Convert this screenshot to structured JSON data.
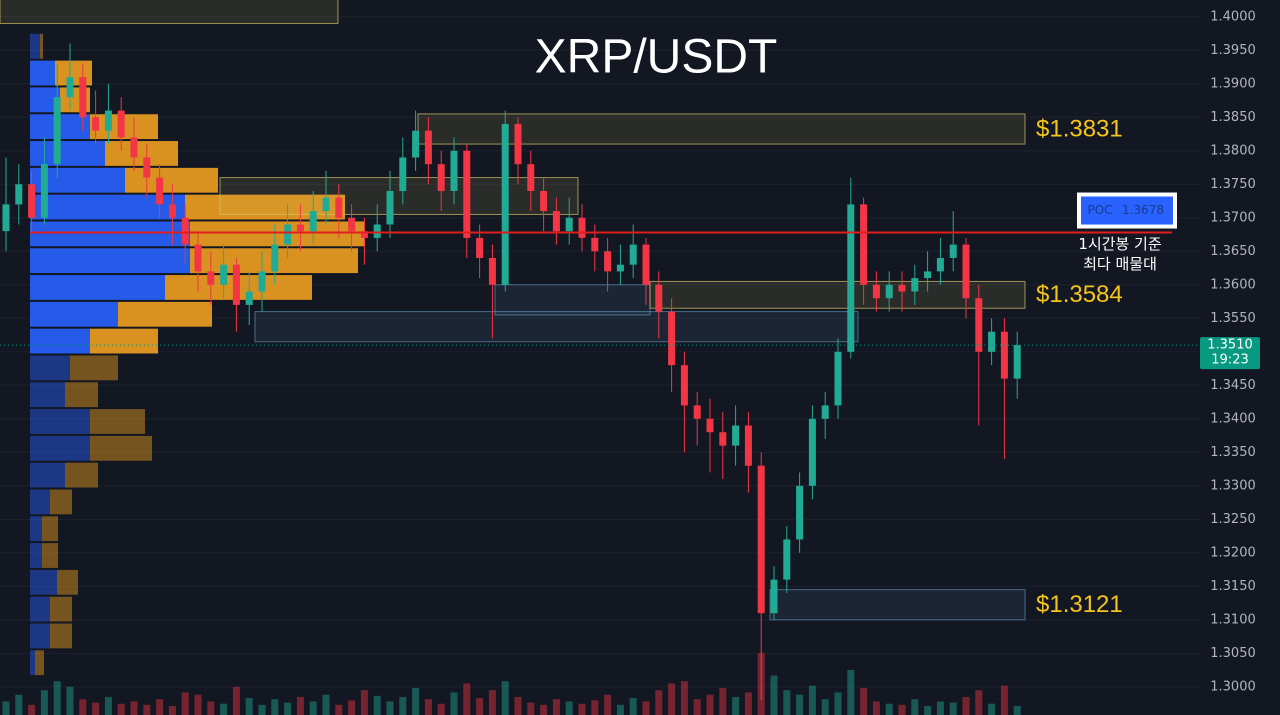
{
  "chart_data": {
    "type": "candlestick",
    "title": "XRP/USDT",
    "ylim": [
      1.2958,
      1.4025
    ],
    "yticks": [
      {
        "value": 1.3,
        "label": "1.3000"
      },
      {
        "value": 1.305,
        "label": "1.3050"
      },
      {
        "value": 1.31,
        "label": "1.3100"
      },
      {
        "value": 1.315,
        "label": "1.3150"
      },
      {
        "value": 1.32,
        "label": "1.3200"
      },
      {
        "value": 1.325,
        "label": "1.3250"
      },
      {
        "value": 1.33,
        "label": "1.3300"
      },
      {
        "value": 1.335,
        "label": "1.3350"
      },
      {
        "value": 1.34,
        "label": "1.3400"
      },
      {
        "value": 1.345,
        "label": "1.3450"
      },
      {
        "value": 1.35,
        "label": "1.3500"
      },
      {
        "value": 1.355,
        "label": "1.3550"
      },
      {
        "value": 1.36,
        "label": "1.3600"
      },
      {
        "value": 1.365,
        "label": "1.3650"
      },
      {
        "value": 1.37,
        "label": "1.3700"
      },
      {
        "value": 1.375,
        "label": "1.3750"
      },
      {
        "value": 1.38,
        "label": "1.3800"
      },
      {
        "value": 1.385,
        "label": "1.3850"
      },
      {
        "value": 1.39,
        "label": "1.3900"
      },
      {
        "value": 1.395,
        "label": "1.3950"
      },
      {
        "value": 1.4,
        "label": "1.4000"
      }
    ],
    "grid": true,
    "up_color": "#22ab94",
    "down_color": "#f23645",
    "open": [
      1.368,
      1.372,
      1.375,
      1.37,
      1.378,
      1.388,
      1.391,
      1.385,
      1.383,
      1.386,
      1.382,
      1.379,
      1.376,
      1.372,
      1.37,
      1.366,
      1.362,
      1.36,
      1.363,
      1.357,
      1.359,
      1.362,
      1.366,
      1.369,
      1.368,
      1.371,
      1.373,
      1.37,
      1.368,
      1.367,
      1.369,
      1.374,
      1.379,
      1.383,
      1.378,
      1.374,
      1.38,
      1.367,
      1.364,
      1.36,
      1.384,
      1.378,
      1.374,
      1.371,
      1.368,
      1.37,
      1.367,
      1.365,
      1.362,
      1.363,
      1.366,
      1.36,
      1.356,
      1.348,
      1.342,
      1.34,
      1.338,
      1.336,
      1.339,
      1.333,
      1.311,
      1.316,
      1.322,
      1.33,
      1.34,
      1.342,
      1.35,
      1.372,
      1.36,
      1.358,
      1.36,
      1.359,
      1.361,
      1.362,
      1.364,
      1.366,
      1.358,
      1.35,
      1.353,
      1.346
    ],
    "high": [
      1.379,
      1.378,
      1.377,
      1.382,
      1.393,
      1.396,
      1.393,
      1.389,
      1.39,
      1.388,
      1.385,
      1.381,
      1.378,
      1.375,
      1.372,
      1.368,
      1.365,
      1.366,
      1.364,
      1.362,
      1.365,
      1.369,
      1.372,
      1.372,
      1.374,
      1.377,
      1.375,
      1.372,
      1.37,
      1.372,
      1.377,
      1.382,
      1.386,
      1.385,
      1.38,
      1.382,
      1.381,
      1.369,
      1.366,
      1.386,
      1.385,
      1.38,
      1.376,
      1.373,
      1.373,
      1.372,
      1.369,
      1.367,
      1.366,
      1.369,
      1.367,
      1.362,
      1.358,
      1.35,
      1.344,
      1.343,
      1.341,
      1.342,
      1.341,
      1.335,
      1.318,
      1.324,
      1.332,
      1.342,
      1.344,
      1.352,
      1.376,
      1.373,
      1.362,
      1.362,
      1.362,
      1.363,
      1.365,
      1.367,
      1.371,
      1.367,
      1.36,
      1.355,
      1.355,
      1.353
    ],
    "low": [
      1.365,
      1.369,
      1.368,
      1.369,
      1.376,
      1.386,
      1.383,
      1.381,
      1.381,
      1.38,
      1.377,
      1.373,
      1.37,
      1.366,
      1.363,
      1.359,
      1.357,
      1.358,
      1.353,
      1.354,
      1.356,
      1.36,
      1.364,
      1.365,
      1.366,
      1.369,
      1.367,
      1.365,
      1.363,
      1.365,
      1.367,
      1.372,
      1.377,
      1.375,
      1.371,
      1.372,
      1.364,
      1.361,
      1.352,
      1.359,
      1.375,
      1.371,
      1.368,
      1.366,
      1.366,
      1.365,
      1.362,
      1.359,
      1.36,
      1.361,
      1.357,
      1.352,
      1.344,
      1.335,
      1.336,
      1.332,
      1.331,
      1.333,
      1.329,
      1.298,
      1.31,
      1.314,
      1.32,
      1.328,
      1.337,
      1.34,
      1.349,
      1.357,
      1.356,
      1.356,
      1.356,
      1.357,
      1.359,
      1.36,
      1.362,
      1.355,
      1.339,
      1.348,
      1.334,
      1.343
    ],
    "close": [
      1.372,
      1.375,
      1.37,
      1.378,
      1.388,
      1.391,
      1.385,
      1.383,
      1.386,
      1.382,
      1.379,
      1.376,
      1.372,
      1.37,
      1.366,
      1.362,
      1.36,
      1.363,
      1.357,
      1.359,
      1.362,
      1.366,
      1.369,
      1.368,
      1.371,
      1.373,
      1.37,
      1.368,
      1.367,
      1.369,
      1.374,
      1.379,
      1.383,
      1.378,
      1.374,
      1.38,
      1.367,
      1.364,
      1.36,
      1.384,
      1.378,
      1.374,
      1.371,
      1.368,
      1.37,
      1.367,
      1.365,
      1.362,
      1.363,
      1.366,
      1.36,
      1.356,
      1.348,
      1.342,
      1.34,
      1.338,
      1.336,
      1.339,
      1.333,
      1.311,
      1.316,
      1.322,
      1.33,
      1.34,
      1.342,
      1.35,
      1.372,
      1.36,
      1.358,
      1.36,
      1.359,
      1.361,
      1.362,
      1.364,
      1.366,
      1.358,
      1.35,
      1.353,
      1.346,
      1.351
    ],
    "volume": [
      12,
      18,
      9,
      22,
      30,
      25,
      14,
      11,
      16,
      10,
      12,
      9,
      14,
      8,
      20,
      18,
      12,
      10,
      25,
      15,
      9,
      14,
      11,
      16,
      12,
      18,
      9,
      13,
      22,
      17,
      12,
      16,
      24,
      14,
      10,
      20,
      28,
      15,
      22,
      30,
      16,
      11,
      9,
      14,
      12,
      10,
      13,
      18,
      9,
      15,
      12,
      22,
      28,
      30,
      14,
      18,
      24,
      16,
      20,
      55,
      35,
      22,
      18,
      26,
      14,
      20,
      40,
      24,
      12,
      10,
      9,
      14,
      8,
      12,
      11,
      16,
      22,
      10,
      26,
      8
    ],
    "profile": {
      "bins": [
        1.3976,
        1.3936,
        1.3896,
        1.3856,
        1.3816,
        1.3776,
        1.3736,
        1.3696,
        1.3656,
        1.3616,
        1.3576,
        1.3536,
        1.3496,
        1.3456,
        1.3416,
        1.3376,
        1.3336,
        1.3296,
        1.3256,
        1.3216,
        1.3176,
        1.3136,
        1.3096,
        1.3056,
        1.3016
      ],
      "buy": [
        10,
        25,
        30,
        60,
        75,
        95,
        155,
        160,
        160,
        135,
        88,
        60,
        40,
        35,
        60,
        60,
        35,
        20,
        12,
        12,
        27,
        20,
        20,
        5
      ],
      "sell": [
        3,
        37,
        30,
        68,
        73,
        93,
        160,
        175,
        168,
        147,
        94,
        68,
        48,
        33,
        55,
        62,
        33,
        22,
        16,
        16,
        21,
        22,
        22,
        9
      ],
      "buy_color": "#2962ff",
      "sell_color": "#f0a020"
    },
    "zones": [
      {
        "low": 1.399,
        "high": 1.403
      },
      {
        "low": 1.381,
        "high": 1.3855,
        "value": 1.3831,
        "value_label": "$1.3831"
      },
      {
        "low": 1.3705,
        "high": 1.376
      },
      {
        "low": 1.3555,
        "high": 1.36
      },
      {
        "low": 1.3515,
        "high": 1.356
      },
      {
        "low": 1.3565,
        "high": 1.3605,
        "value": 1.3584,
        "value_label": "$1.3584"
      },
      {
        "low": 1.31,
        "high": 1.3145,
        "value": 1.3121,
        "value_label": "$1.3121"
      }
    ],
    "poc": {
      "name": "POC",
      "value": 1.3678,
      "value_label": "1.3678",
      "color": "#e01e1e"
    },
    "annotation": [
      "1시간봉 기준",
      "최다 매물대"
    ],
    "last_price": {
      "value": 1.351,
      "value_label": "1.3510",
      "countdown": "19:23",
      "color": "#089981"
    }
  }
}
